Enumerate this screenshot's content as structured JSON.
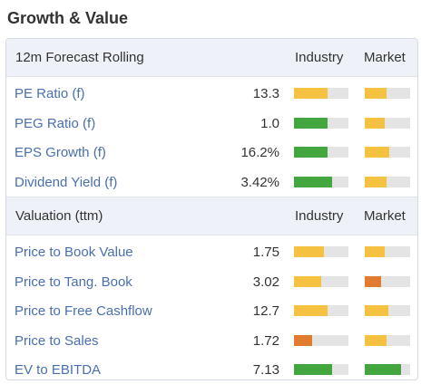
{
  "title": "Growth & Value",
  "colors": {
    "yellow": "#f5c141",
    "green": "#43a63f",
    "orange": "#e07b2f",
    "track": "#e4e4e4",
    "link": "#4a6fb0"
  },
  "sections": [
    {
      "header": {
        "label": "12m Forecast Rolling",
        "industry": "Industry",
        "market": "Market"
      },
      "rows": [
        {
          "metric": "PE Ratio (f)",
          "value": "13.3",
          "industry": {
            "level": 0.62,
            "color": "yellow"
          },
          "market": {
            "level": 0.48,
            "color": "yellow"
          }
        },
        {
          "metric": "PEG Ratio (f)",
          "value": "1.0",
          "industry": {
            "level": 0.62,
            "color": "green"
          },
          "market": {
            "level": 0.44,
            "color": "yellow"
          }
        },
        {
          "metric": "EPS Growth (f)",
          "value": "16.2%",
          "industry": {
            "level": 0.62,
            "color": "green"
          },
          "market": {
            "level": 0.54,
            "color": "yellow"
          }
        },
        {
          "metric": "Dividend Yield (f)",
          "value": "3.42%",
          "industry": {
            "level": 0.7,
            "color": "green"
          },
          "market": {
            "level": 0.48,
            "color": "yellow"
          }
        }
      ]
    },
    {
      "header": {
        "label": "Valuation (ttm)",
        "industry": "Industry",
        "market": "Market"
      },
      "rows": [
        {
          "metric": "Price to Book Value",
          "value": "1.75",
          "industry": {
            "level": 0.55,
            "color": "yellow"
          },
          "market": {
            "level": 0.44,
            "color": "yellow"
          }
        },
        {
          "metric": "Price to Tang. Book",
          "value": "3.02",
          "industry": {
            "level": 0.5,
            "color": "yellow"
          },
          "market": {
            "level": 0.36,
            "color": "orange"
          }
        },
        {
          "metric": "Price to Free Cashflow",
          "value": "12.7",
          "industry": {
            "level": 0.62,
            "color": "yellow"
          },
          "market": {
            "level": 0.52,
            "color": "yellow"
          }
        },
        {
          "metric": "Price to Sales",
          "value": "1.72",
          "industry": {
            "level": 0.33,
            "color": "orange"
          },
          "market": {
            "level": 0.48,
            "color": "yellow"
          }
        },
        {
          "metric": "EV to EBITDA",
          "value": "7.13",
          "industry": {
            "level": 0.7,
            "color": "green"
          },
          "market": {
            "level": 0.8,
            "color": "green"
          }
        }
      ]
    }
  ]
}
